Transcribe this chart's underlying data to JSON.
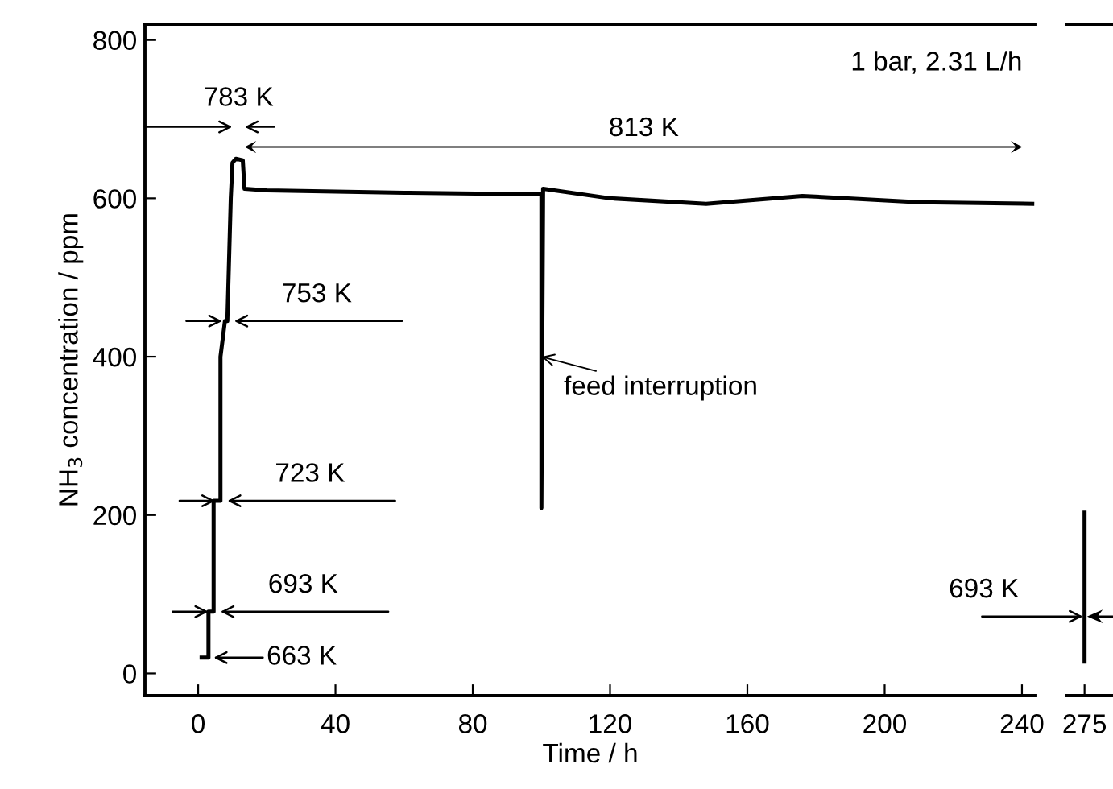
{
  "chart_data": [
    {
      "type": "line",
      "color": "#000000",
      "xlabel": "Time / h",
      "ylabel": "NH$_{3}$ concentration / ppm",
      "x": [
        1,
        3,
        3,
        4.5,
        4.5,
        6.5,
        6.5,
        7.8,
        8.5,
        9.5,
        10,
        11,
        13,
        13.5,
        20,
        60,
        100,
        100,
        100.5,
        120,
        148,
        176,
        210,
        243
      ],
      "values": [
        20,
        20,
        78,
        78,
        218,
        218,
        400,
        445,
        445,
        600,
        645,
        650,
        648,
        612,
        610,
        607,
        605,
        209,
        612,
        600,
        593,
        603,
        595,
        593
      ],
      "xlim": [
        -15.5,
        244
      ],
      "ylim": [
        -28,
        820
      ],
      "xticks": [
        0,
        40,
        80,
        120,
        160,
        200,
        240
      ],
      "yticks": [
        0,
        200,
        400,
        600,
        800
      ],
      "annotations": [
        "1 bar, 2.31 L/h",
        "783 K",
        "813 K",
        {
          "text": "753 K",
          "x": 8.5,
          "y": 445
        },
        {
          "text": "723 K",
          "x": 6.5,
          "y": 218
        },
        {
          "text": "693 K",
          "x": 4.5,
          "y": 78
        },
        {
          "text": "663 K",
          "x": 3,
          "y": 20
        },
        {
          "text": "feed interruption",
          "x": 100,
          "y": 400
        }
      ]
    },
    {
      "type": "line",
      "categories": [
        "275"
      ],
      "series": [
        {
          "x": [
            "275",
            "275",
            "275"
          ],
          "values": [
            203,
            72,
            15
          ],
          "color": "#000000"
        }
      ],
      "yticks": [
        0,
        200,
        400,
        600,
        800
      ],
      "tick_labels": "x",
      "annotations": [
        {
          "text": "693 K",
          "x": "275",
          "y": 72
        }
      ]
    }
  ]
}
